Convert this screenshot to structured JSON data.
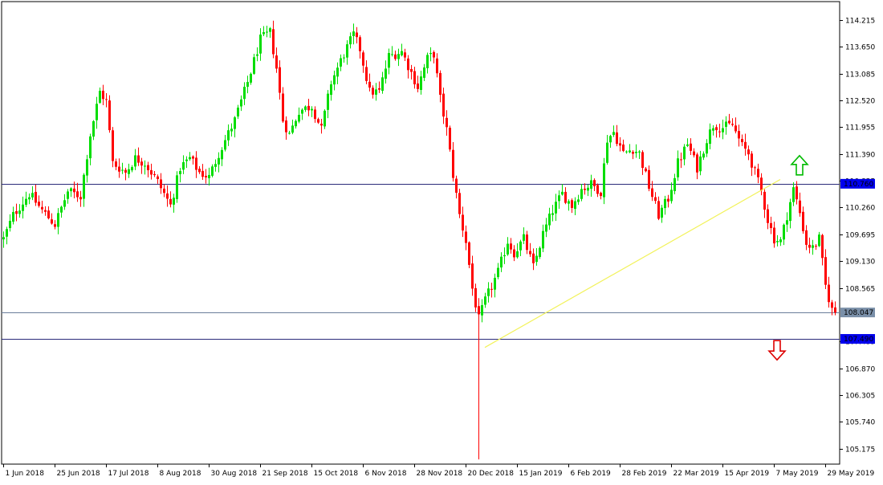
{
  "chart_data": {
    "type": "candlestick",
    "title": "",
    "xlabel": "",
    "ylabel": "",
    "ylim": [
      104.85,
      114.6
    ],
    "grid": false,
    "colors": {
      "bull": "#00dd00",
      "bear": "#ff0000",
      "hline_dark": "#2b2b7a",
      "hline_light": "#6a7d9a",
      "tag_blue": "#0000ee",
      "tag_gray": "#7a8fa8",
      "trendline": "#f2f25a",
      "arrow_up": "#00bb00",
      "arrow_down": "#dd0000",
      "border": "#000000"
    },
    "y_ticks": [
      {
        "v": 114.215,
        "label": "114.215"
      },
      {
        "v": 113.65,
        "label": "113.650"
      },
      {
        "v": 113.085,
        "label": "113.085"
      },
      {
        "v": 112.52,
        "label": "112.520"
      },
      {
        "v": 111.955,
        "label": "111.955"
      },
      {
        "v": 111.39,
        "label": "111.390"
      },
      {
        "v": 110.825,
        "label": "110.825"
      },
      {
        "v": 110.26,
        "label": "110.260"
      },
      {
        "v": 109.695,
        "label": "109.695"
      },
      {
        "v": 109.13,
        "label": "109.130"
      },
      {
        "v": 108.565,
        "label": "108.565"
      },
      {
        "v": 107.435,
        "label": "107.435"
      },
      {
        "v": 106.87,
        "label": "106.870"
      },
      {
        "v": 106.305,
        "label": "106.305"
      },
      {
        "v": 105.74,
        "label": "105.740"
      },
      {
        "v": 105.175,
        "label": "105.175"
      }
    ],
    "x_ticks": [
      {
        "i": 0,
        "label": "1 Jun 2018"
      },
      {
        "i": 16,
        "label": "25 Jun 2018"
      },
      {
        "i": 32,
        "label": "17 Jul 2018"
      },
      {
        "i": 48,
        "label": "8 Aug 2018"
      },
      {
        "i": 64,
        "label": "30 Aug 2018"
      },
      {
        "i": 80,
        "label": "21 Sep 2018"
      },
      {
        "i": 96,
        "label": "15 Oct 2018"
      },
      {
        "i": 112,
        "label": "6 Nov 2018"
      },
      {
        "i": 128,
        "label": "28 Nov 2018"
      },
      {
        "i": 144,
        "label": "20 Dec 2018"
      },
      {
        "i": 160,
        "label": "15 Jan 2019"
      },
      {
        "i": 176,
        "label": "6 Feb 2019"
      },
      {
        "i": 192,
        "label": "28 Feb 2019"
      },
      {
        "i": 208,
        "label": "22 Mar 2019"
      },
      {
        "i": 224,
        "label": "15 Apr 2019"
      },
      {
        "i": 240,
        "label": "7 May 2019"
      },
      {
        "i": 256,
        "label": "29 May 2019"
      }
    ],
    "price_path": [
      [
        0,
        109.6
      ],
      [
        3,
        110.1
      ],
      [
        8,
        110.55
      ],
      [
        12,
        110.2
      ],
      [
        16,
        109.9
      ],
      [
        20,
        110.6
      ],
      [
        24,
        110.5
      ],
      [
        27,
        111.8
      ],
      [
        30,
        112.7
      ],
      [
        32,
        112.5
      ],
      [
        34,
        111.2
      ],
      [
        38,
        111.0
      ],
      [
        41,
        111.3
      ],
      [
        44,
        111.2
      ],
      [
        48,
        110.8
      ],
      [
        52,
        110.3
      ],
      [
        55,
        111.1
      ],
      [
        58,
        111.3
      ],
      [
        61,
        111.0
      ],
      [
        64,
        110.9
      ],
      [
        67,
        111.4
      ],
      [
        72,
        112.1
      ],
      [
        76,
        112.9
      ],
      [
        80,
        113.8
      ],
      [
        83,
        113.95
      ],
      [
        85,
        113.2
      ],
      [
        87,
        112.1
      ],
      [
        89,
        111.8
      ],
      [
        92,
        112.3
      ],
      [
        96,
        112.4
      ],
      [
        99,
        111.9
      ],
      [
        102,
        112.9
      ],
      [
        106,
        113.5
      ],
      [
        109,
        113.9
      ],
      [
        111,
        113.6
      ],
      [
        114,
        112.7
      ],
      [
        117,
        112.7
      ],
      [
        120,
        113.45
      ],
      [
        124,
        113.55
      ],
      [
        127,
        113.1
      ],
      [
        129,
        112.8
      ],
      [
        132,
        113.4
      ],
      [
        134,
        113.5
      ],
      [
        136,
        112.55
      ],
      [
        138,
        111.9
      ],
      [
        140,
        110.95
      ],
      [
        142,
        110.1
      ],
      [
        144,
        109.55
      ],
      [
        146,
        108.55
      ],
      [
        148,
        107.9
      ],
      [
        150,
        108.3
      ],
      [
        152,
        108.6
      ],
      [
        154,
        108.9
      ],
      [
        157,
        109.55
      ],
      [
        159,
        109.3
      ],
      [
        162,
        109.6
      ],
      [
        165,
        109.0
      ],
      [
        168,
        109.7
      ],
      [
        171,
        110.2
      ],
      [
        174,
        110.55
      ],
      [
        177,
        110.3
      ],
      [
        180,
        110.65
      ],
      [
        183,
        110.75
      ],
      [
        186,
        110.6
      ],
      [
        188,
        111.7
      ],
      [
        190,
        111.85
      ],
      [
        193,
        111.4
      ],
      [
        196,
        111.5
      ],
      [
        198,
        111.4
      ],
      [
        201,
        110.7
      ],
      [
        204,
        110.1
      ],
      [
        207,
        110.45
      ],
      [
        210,
        111.2
      ],
      [
        213,
        111.6
      ],
      [
        216,
        111.1
      ],
      [
        219,
        111.7
      ],
      [
        221,
        112.0
      ],
      [
        224,
        111.95
      ],
      [
        227,
        112.0
      ],
      [
        230,
        111.55
      ],
      [
        232,
        111.4
      ],
      [
        234,
        111.0
      ],
      [
        236,
        110.6
      ],
      [
        238,
        110.0
      ],
      [
        240,
        109.6
      ],
      [
        242,
        109.55
      ],
      [
        244,
        110.1
      ],
      [
        246,
        110.65
      ],
      [
        248,
        110.15
      ],
      [
        250,
        109.5
      ],
      [
        252,
        109.4
      ],
      [
        254,
        109.6
      ],
      [
        256,
        108.6
      ],
      [
        258,
        108.1
      ],
      [
        259,
        108.047
      ]
    ],
    "spike": {
      "i": 148,
      "low": 104.95
    },
    "horizontal_levels": [
      {
        "price": 110.76,
        "label": "110.760",
        "style": "dark",
        "tag": "blue"
      },
      {
        "price": 108.047,
        "label": "108.047",
        "style": "light",
        "tag": "gray"
      },
      {
        "price": 107.49,
        "label": "107.490",
        "style": "dark",
        "tag": "blue"
      }
    ],
    "trendline": {
      "from": [
        150,
        107.31
      ],
      "to": [
        242,
        110.85
      ]
    },
    "arrows": [
      {
        "dir": "up",
        "i": 248,
        "price": 111.15
      },
      {
        "dir": "down",
        "i": 241,
        "price": 107.25
      }
    ]
  }
}
